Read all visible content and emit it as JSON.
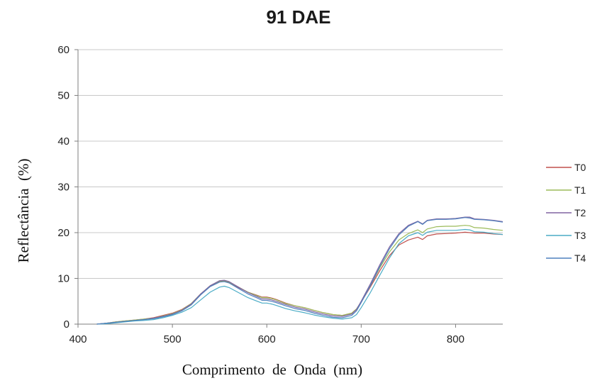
{
  "chart_data": {
    "type": "line",
    "title": "91 DAE",
    "xlabel": "Comprimento  de  Onda  (nm)",
    "ylabel": "Reflectância  (%)",
    "xlim": [
      400,
      850
    ],
    "ylim": [
      0,
      60
    ],
    "x_ticks": [
      400,
      500,
      600,
      700,
      800
    ],
    "y_ticks": [
      0,
      10,
      20,
      30,
      40,
      50,
      60
    ],
    "grid": "horizontal",
    "legend_position": "right",
    "x": [
      420,
      430,
      440,
      450,
      460,
      470,
      480,
      490,
      500,
      510,
      520,
      530,
      540,
      550,
      555,
      560,
      570,
      580,
      590,
      595,
      600,
      605,
      610,
      620,
      630,
      640,
      650,
      660,
      670,
      680,
      690,
      695,
      700,
      710,
      720,
      730,
      740,
      750,
      760,
      765,
      770,
      780,
      790,
      800,
      810,
      815,
      820,
      830,
      840,
      850
    ],
    "series": [
      {
        "name": "T0",
        "color": "#c0504d",
        "values": [
          0.0,
          0.2,
          0.5,
          0.7,
          0.9,
          1.1,
          1.4,
          1.9,
          2.4,
          3.2,
          4.5,
          6.6,
          8.3,
          9.3,
          9.4,
          9.1,
          8.0,
          7.0,
          6.3,
          5.9,
          5.9,
          5.7,
          5.4,
          4.6,
          4.0,
          3.6,
          3.0,
          2.5,
          2.1,
          1.9,
          2.4,
          3.3,
          4.8,
          8.2,
          11.8,
          15.0,
          17.3,
          18.4,
          19.0,
          18.5,
          19.3,
          19.7,
          19.8,
          19.9,
          20.1,
          20.0,
          19.9,
          19.9,
          19.7,
          19.6
        ]
      },
      {
        "name": "T1",
        "color": "#9bbb59",
        "values": [
          0.0,
          0.2,
          0.5,
          0.7,
          0.9,
          1.1,
          1.3,
          1.8,
          2.3,
          3.1,
          4.5,
          6.6,
          8.4,
          9.4,
          9.5,
          9.2,
          8.1,
          7.0,
          6.2,
          5.8,
          5.8,
          5.6,
          5.3,
          4.5,
          4.0,
          3.6,
          3.0,
          2.5,
          2.1,
          1.9,
          2.4,
          3.3,
          4.9,
          8.5,
          12.4,
          15.8,
          18.4,
          19.8,
          20.6,
          20.0,
          20.8,
          21.3,
          21.4,
          21.4,
          21.6,
          21.5,
          21.1,
          21.0,
          20.7,
          20.5
        ]
      },
      {
        "name": "T2",
        "color": "#8064a2",
        "values": [
          0.0,
          0.2,
          0.4,
          0.6,
          0.8,
          1.0,
          1.3,
          1.7,
          2.2,
          3.0,
          4.4,
          6.6,
          8.4,
          9.5,
          9.6,
          9.3,
          8.1,
          6.9,
          6.0,
          5.5,
          5.5,
          5.3,
          5.0,
          4.3,
          3.7,
          3.3,
          2.7,
          2.2,
          1.8,
          1.7,
          2.2,
          3.2,
          5.0,
          8.9,
          13.1,
          16.9,
          19.8,
          21.6,
          22.5,
          21.9,
          22.7,
          23.0,
          23.0,
          23.1,
          23.4,
          23.4,
          23.0,
          22.9,
          22.7,
          22.4
        ]
      },
      {
        "name": "T3",
        "color": "#4bacc6",
        "values": [
          0.0,
          0.1,
          0.3,
          0.5,
          0.7,
          0.8,
          1.0,
          1.4,
          1.9,
          2.6,
          3.6,
          5.3,
          7.0,
          8.1,
          8.3,
          8.0,
          6.9,
          5.8,
          5.0,
          4.6,
          4.6,
          4.4,
          4.1,
          3.4,
          2.9,
          2.5,
          2.0,
          1.6,
          1.3,
          1.1,
          1.4,
          2.1,
          3.6,
          7.0,
          10.8,
          14.5,
          17.6,
          19.3,
          20.0,
          19.4,
          20.1,
          20.5,
          20.5,
          20.5,
          20.7,
          20.6,
          20.2,
          20.1,
          19.8,
          19.6
        ]
      },
      {
        "name": "T4",
        "color": "#4f81bd",
        "values": [
          0.0,
          0.2,
          0.4,
          0.6,
          0.8,
          1.0,
          1.2,
          1.6,
          2.1,
          2.9,
          4.2,
          6.4,
          8.2,
          9.2,
          9.3,
          9.0,
          7.8,
          6.6,
          5.7,
          5.2,
          5.2,
          5.0,
          4.7,
          4.0,
          3.4,
          3.0,
          2.4,
          1.9,
          1.5,
          1.4,
          1.9,
          2.9,
          4.7,
          8.5,
          12.7,
          16.5,
          19.5,
          21.4,
          22.4,
          21.8,
          22.6,
          22.9,
          22.9,
          23.0,
          23.3,
          23.2,
          22.9,
          22.8,
          22.6,
          22.3
        ]
      }
    ]
  }
}
